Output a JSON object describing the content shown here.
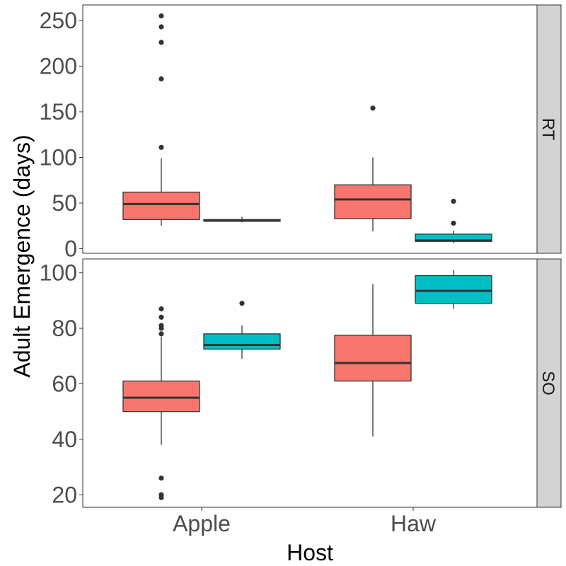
{
  "chart_data": {
    "type": "boxplot",
    "xlabel": "Host",
    "ylabel": "Adult Emergence (days)",
    "categories": [
      "Apple",
      "Haw"
    ],
    "group_colors": [
      "#F8766D",
      "#00BFC4"
    ],
    "grid": false,
    "legend": "none",
    "panels": [
      {
        "strip": "RT",
        "ylim": [
          -5,
          267
        ],
        "yticks": [
          0,
          50,
          100,
          150,
          200,
          250
        ],
        "boxes": [
          {
            "category": "Apple",
            "group": 0,
            "min": 25,
            "q1": 32,
            "median": 49,
            "q3": 62,
            "max": 99,
            "outliers": [
              111,
              186,
              226,
              243,
              255
            ]
          },
          {
            "category": "Apple",
            "group": 1,
            "min": 29,
            "q1": 30,
            "median": 31,
            "q3": 32,
            "max": 35,
            "outliers": []
          },
          {
            "category": "Haw",
            "group": 0,
            "min": 19,
            "q1": 33,
            "median": 54,
            "q3": 70,
            "max": 100,
            "outliers": [
              154
            ]
          },
          {
            "category": "Haw",
            "group": 1,
            "min": 6,
            "q1": 8,
            "median": 9,
            "q3": 16,
            "max": 20,
            "outliers": [
              28,
              52
            ]
          }
        ]
      },
      {
        "strip": "SO",
        "ylim": [
          15.5,
          105
        ],
        "yticks": [
          20,
          40,
          60,
          80,
          100
        ],
        "boxes": [
          {
            "category": "Apple",
            "group": 0,
            "min": 38,
            "q1": 50,
            "median": 55,
            "q3": 61,
            "max": 77,
            "outliers": [
              19,
              20,
              26,
              78,
              80,
              81,
              84,
              87
            ]
          },
          {
            "category": "Apple",
            "group": 1,
            "min": 69,
            "q1": 72.5,
            "median": 74,
            "q3": 78,
            "max": 81,
            "outliers": [
              89
            ]
          },
          {
            "category": "Haw",
            "group": 0,
            "min": 41,
            "q1": 61,
            "median": 67.5,
            "q3": 77.5,
            "max": 96,
            "outliers": []
          },
          {
            "category": "Haw",
            "group": 1,
            "min": 87,
            "q1": 89,
            "median": 93.5,
            "q3": 99,
            "max": 101,
            "outliers": []
          }
        ]
      }
    ]
  }
}
